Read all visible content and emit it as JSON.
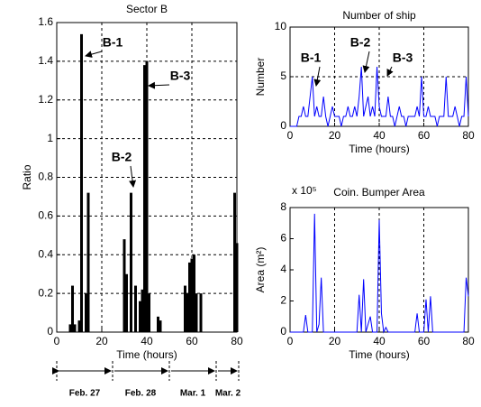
{
  "chart_data": [
    {
      "type": "bar",
      "title": "Sector B",
      "xlabel": "Time (hours)",
      "ylabel": "Ratio",
      "color": "#000000",
      "x": [
        6,
        7,
        8,
        10,
        11,
        13,
        14,
        30,
        31,
        33,
        35,
        37,
        38,
        39,
        40,
        41,
        45,
        46,
        57,
        58,
        59,
        60,
        61,
        62,
        64,
        79,
        80
      ],
      "values": [
        0.04,
        0.24,
        0.04,
        0.06,
        1.54,
        0.2,
        0.72,
        0.48,
        0.3,
        0.72,
        0.24,
        0.16,
        0.22,
        1.38,
        1.4,
        0.2,
        0.08,
        0.06,
        0.24,
        0.2,
        0.36,
        0.38,
        0.4,
        0.2,
        0.2,
        0.72,
        0.46
      ],
      "xlim": [
        0,
        80
      ],
      "ylim": [
        0,
        1.6
      ],
      "xticks": [
        0,
        20,
        40,
        60,
        80
      ],
      "yticks": [
        0,
        0.2,
        0.4,
        0.6,
        0.8,
        1,
        1.2,
        1.4,
        1.6
      ],
      "grid": "both",
      "annotations": [
        "B-1",
        "B-2",
        "B-3"
      ],
      "periods": [
        "Feb. 27",
        "Feb. 28",
        "Mar. 1",
        "Mar. 2"
      ]
    },
    {
      "type": "line",
      "title": "Number of ship",
      "xlabel": "Time (hours)",
      "ylabel": "Number",
      "color": "#0000ff",
      "x": [
        0,
        1,
        2,
        3,
        4,
        5,
        6,
        7,
        8,
        9,
        10,
        11,
        12,
        13,
        14,
        15,
        16,
        17,
        18,
        19,
        20,
        21,
        22,
        23,
        24,
        25,
        26,
        27,
        28,
        29,
        30,
        31,
        32,
        33,
        34,
        35,
        36,
        37,
        38,
        39,
        40,
        41,
        42,
        43,
        44,
        45,
        46,
        47,
        48,
        49,
        50,
        51,
        52,
        53,
        54,
        55,
        56,
        57,
        58,
        59,
        60,
        61,
        62,
        63,
        64,
        65,
        66,
        67,
        68,
        69,
        70,
        71,
        72,
        73,
        74,
        75,
        76,
        77,
        78,
        79,
        80
      ],
      "values": [
        0,
        0,
        0,
        0,
        1,
        1,
        2,
        1,
        1,
        3,
        5,
        1,
        2,
        1,
        1,
        3,
        1,
        0,
        1,
        2,
        1,
        1,
        1,
        0,
        1,
        1,
        2,
        1,
        1,
        2,
        1,
        3,
        6,
        1,
        2,
        3,
        1,
        2,
        1,
        6,
        2,
        1,
        1,
        1,
        3,
        1,
        1,
        0,
        1,
        2,
        1,
        1,
        0,
        1,
        1,
        1,
        1,
        2,
        1,
        5,
        1,
        1,
        2,
        1,
        1,
        1,
        0,
        1,
        1,
        1,
        5,
        1,
        1,
        1,
        2,
        1,
        0,
        1,
        1,
        5,
        1
      ],
      "xlim": [
        0,
        80
      ],
      "ylim": [
        0,
        10
      ],
      "xticks": [
        0,
        20,
        40,
        60,
        80
      ],
      "yticks": [
        0,
        5,
        10
      ],
      "grid": "both",
      "annotations": [
        "B-1",
        "B-2",
        "B-3"
      ]
    },
    {
      "type": "line",
      "title": "Coin. Bumper Area",
      "scale_label": "x 10⁵",
      "xlabel": "Time (hours)",
      "ylabel": "Area (m²)",
      "color": "#0000ff",
      "x": [
        0,
        6,
        7,
        8,
        10,
        11,
        12,
        13,
        14,
        15,
        30,
        31,
        32,
        33,
        34,
        36,
        37,
        39,
        40,
        41,
        42,
        43,
        44,
        56,
        57,
        58,
        60,
        61,
        62,
        63,
        64,
        78,
        79,
        80
      ],
      "values": [
        0,
        0,
        1.1,
        0,
        0,
        7.6,
        0,
        0.5,
        3.5,
        0,
        0,
        2.4,
        0,
        3.4,
        0,
        1.0,
        0,
        0,
        7.2,
        1.2,
        0,
        0.3,
        0,
        0,
        1.2,
        0,
        0,
        2.1,
        0,
        2.3,
        0,
        0,
        3.5,
        2.3
      ],
      "xlim": [
        0,
        80
      ],
      "ylim": [
        0,
        8
      ],
      "xticks": [
        0,
        20,
        40,
        60,
        80
      ],
      "yticks": [
        0,
        2,
        4,
        6,
        8
      ],
      "grid": "x"
    }
  ]
}
